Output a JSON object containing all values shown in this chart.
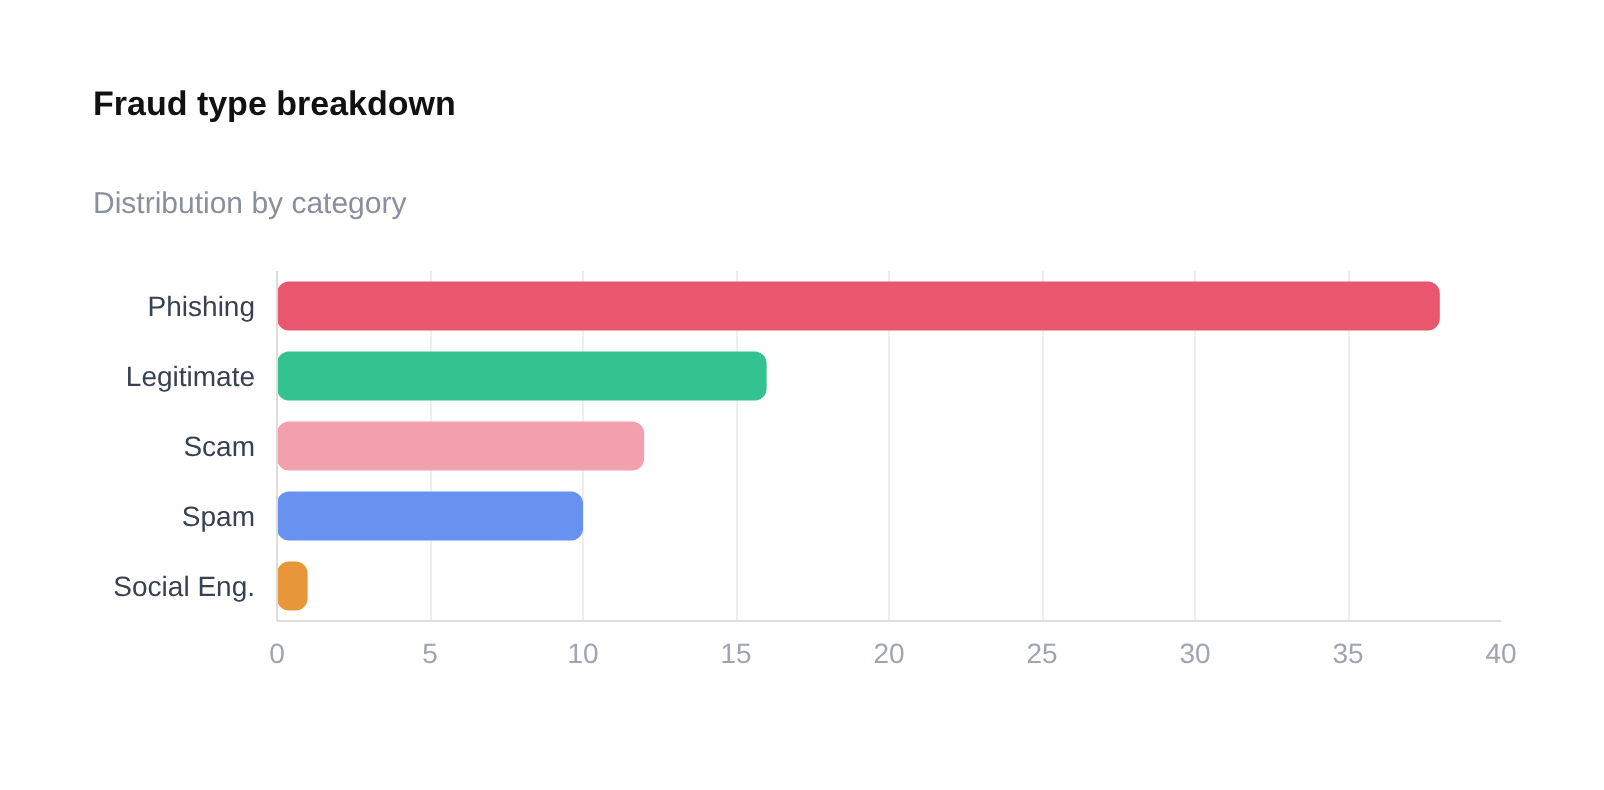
{
  "chart_data": {
    "type": "bar",
    "orientation": "horizontal",
    "title": "Fraud type breakdown",
    "subtitle": "Distribution by category",
    "categories": [
      "Phishing",
      "Legitimate",
      "Scam",
      "Spam",
      "Social Eng."
    ],
    "values": [
      38,
      16,
      12,
      10,
      1
    ],
    "colors": [
      "#ea566e",
      "#33c391",
      "#f2a0ab",
      "#6892ef",
      "#e8963a"
    ],
    "xlim": [
      0,
      40
    ],
    "xticks": [
      0,
      5,
      10,
      15,
      20,
      25,
      30,
      35,
      40
    ],
    "grid": "x"
  }
}
